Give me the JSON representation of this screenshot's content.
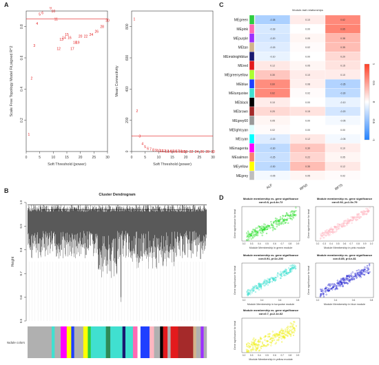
{
  "labels": {
    "a": "A",
    "b": "B",
    "c": "C",
    "d": "D"
  },
  "chart_data": [
    {
      "type": "scatter",
      "id": "scale_free_fit",
      "xlabel": "Soft Threshold (power)",
      "ylabel": "Scale Free Topology Model Fit,signed R^2",
      "xlim": [
        0,
        30
      ],
      "ylim": [
        0,
        0.9
      ],
      "xticks": [
        0,
        5,
        10,
        15,
        20,
        25,
        30
      ],
      "yticks": [
        0.2,
        0.4,
        0.6,
        0.8
      ],
      "hline": 0.85,
      "hline_color": "#e31a1c",
      "x": [
        1,
        2,
        3,
        4,
        5,
        6,
        7,
        8,
        9,
        10,
        11,
        12,
        13,
        14,
        15,
        16,
        17,
        18,
        19,
        20,
        22,
        24,
        26,
        28,
        30
      ],
      "y": [
        0.11,
        0.47,
        0.68,
        0.82,
        0.88,
        0.89,
        0.94,
        0.94,
        0.92,
        0.9,
        0.85,
        0.66,
        0.72,
        0.73,
        0.75,
        0.73,
        0.66,
        0.7,
        0.7,
        0.74,
        0.74,
        0.75,
        0.77,
        0.8,
        0.84
      ]
    },
    {
      "type": "scatter",
      "id": "mean_connectivity",
      "xlabel": "Soft Threshold (power)",
      "ylabel": "Mean Connectivity",
      "xlim": [
        0,
        30
      ],
      "ylim": [
        0,
        900
      ],
      "xticks": [
        0,
        5,
        10,
        15,
        20,
        25,
        30
      ],
      "yticks": [
        0,
        200,
        400,
        600,
        800
      ],
      "hline": 100,
      "hline_color": "#e31a1c",
      "x": [
        1,
        2,
        3,
        4,
        5,
        6,
        7,
        8,
        9,
        10,
        11,
        12,
        13,
        14,
        15,
        16,
        17,
        18,
        19,
        20,
        22,
        24,
        26,
        28,
        30
      ],
      "y": [
        850,
        260,
        100,
        50,
        30,
        20,
        15,
        10,
        8,
        6,
        5,
        4,
        3,
        3,
        2,
        2,
        2,
        2,
        1,
        1,
        1,
        1,
        1,
        1,
        1
      ]
    },
    {
      "type": "heatmap",
      "id": "module_trait",
      "title": "Module-trait relationships",
      "columns": [
        "ALF",
        "RF50",
        "RF75"
      ],
      "colorbar_ticks": [
        "1",
        "0.5",
        "0",
        "-0.5",
        "-1"
      ],
      "rows": [
        {
          "name": "MEgreen",
          "color": "#2ecc40",
          "r": [
            -0.38,
            0.1,
            0.62
          ]
        },
        {
          "name": "MEpink",
          "color": "#ff69b4",
          "r": [
            -0.18,
            0.0,
            0.65
          ]
        },
        {
          "name": "MEpurple",
          "color": "#9b30ff",
          "r": [
            -0.2,
            0.05,
            0.38
          ]
        },
        {
          "name": "MEtan",
          "color": "#d2b48c",
          "r": [
            -0.15,
            0.02,
            0.35
          ]
        },
        {
          "name": "MEmidnightblue",
          "color": "#191970",
          "r": [
            -0.1,
            0.0,
            0.2
          ]
        },
        {
          "name": "MEred",
          "color": "#e31a1c",
          "r": [
            0.12,
            0.05,
            0.15
          ]
        },
        {
          "name": "MEgreenyellow",
          "color": "#adff2f",
          "r": [
            0.3,
            0.1,
            0.1
          ]
        },
        {
          "name": "MEblue",
          "color": "#1f3fff",
          "r": [
            0.6,
            0.08,
            -0.35
          ]
        },
        {
          "name": "MEturquoise",
          "color": "#40e0d0",
          "r": [
            0.62,
            0.02,
            -0.3
          ]
        },
        {
          "name": "MEblack",
          "color": "#000000",
          "r": [
            0.1,
            0.0,
            -0.1
          ]
        },
        {
          "name": "MEbrown",
          "color": "#a52a2a",
          "r": [
            0.2,
            0.15,
            -0.2
          ]
        },
        {
          "name": "MEgrey60",
          "color": "#999999",
          "r": [
            0.05,
            0.0,
            -0.05
          ]
        },
        {
          "name": "MElightcyan",
          "color": "#e0ffff",
          "r": [
            0.02,
            0.0,
            0.0
          ]
        },
        {
          "name": "MEcyan",
          "color": "#00ffff",
          "r": [
            -0.15,
            0.12,
            -0.05
          ]
        },
        {
          "name": "MEmagenta",
          "color": "#ff00ff",
          "r": [
            -0.3,
            0.3,
            0.1
          ]
        },
        {
          "name": "MEsalmon",
          "color": "#fa8072",
          "r": [
            -0.25,
            0.22,
            0.05
          ]
        },
        {
          "name": "MEyellow",
          "color": "#ffff00",
          "r": [
            -0.3,
            0.35,
            0.12
          ]
        },
        {
          "name": "MEgrey",
          "color": "#bebebe",
          "r": [
            -0.05,
            0.05,
            0.02
          ]
        }
      ]
    },
    {
      "type": "dendrogram",
      "id": "cluster_dendrogram",
      "title": "Cluster Dendrogram",
      "ylabel": "Height",
      "yticks": [
        0.5,
        0.6,
        0.7,
        0.8,
        0.9,
        1.0
      ],
      "ylim": [
        0.5,
        1.0
      ],
      "module_colors_label": "Module colors",
      "module_colors": [
        {
          "color": "#b0b0b0",
          "w": 16
        },
        {
          "color": "#40e0d0",
          "w": 2
        },
        {
          "color": "#b0b0b0",
          "w": 4
        },
        {
          "color": "#ff00ff",
          "w": 4
        },
        {
          "color": "#ffff00",
          "w": 3
        },
        {
          "color": "#1f3fff",
          "w": 2
        },
        {
          "color": "#b0b0b0",
          "w": 6
        },
        {
          "color": "#ffff00",
          "w": 3
        },
        {
          "color": "#2ecc40",
          "w": 2
        },
        {
          "color": "#40e0d0",
          "w": 10
        },
        {
          "color": "#2e8b57",
          "w": 3
        },
        {
          "color": "#40e0d0",
          "w": 8
        },
        {
          "color": "#191970",
          "w": 2
        },
        {
          "color": "#40e0d0",
          "w": 5
        },
        {
          "color": "#ff69b4",
          "w": 3
        },
        {
          "color": "#ffffff",
          "w": 2
        },
        {
          "color": "#1f3fff",
          "w": 6
        },
        {
          "color": "#ffb6c1",
          "w": 3
        },
        {
          "color": "#b0b0b0",
          "w": 4
        },
        {
          "color": "#000000",
          "w": 2
        },
        {
          "color": "#e31a1c",
          "w": 3
        },
        {
          "color": "#b0b0b0",
          "w": 2
        },
        {
          "color": "#e31a1c",
          "w": 5
        },
        {
          "color": "#a52a2a",
          "w": 10
        },
        {
          "color": "#d2b48c",
          "w": 2
        },
        {
          "color": "#b0b0b0",
          "w": 3
        },
        {
          "color": "#9b30ff",
          "w": 2
        },
        {
          "color": "#b0b0b0",
          "w": 2
        }
      ]
    },
    {
      "type": "scatter",
      "id": "mm_gs_green",
      "title": "Module membership vs. gene significance",
      "subtitle": "cor=0.8, p=4.4e-72",
      "xlabel": "Module Membership in green module",
      "ylabel": "Gene significance for treat",
      "color": "#22dd22",
      "xticks": [
        "0.2",
        "0.3",
        "0.4",
        "0.5",
        "0.6",
        "0.7",
        "0.8",
        "0.9"
      ]
    },
    {
      "type": "scatter",
      "id": "mm_gs_pink",
      "title": "Module membership vs. gene significance",
      "subtitle": "cor=0.92, p=1.3e-79",
      "xlabel": "Module Membership in pink module",
      "ylabel": "Gene significance for treat",
      "color": "#ffb6c1",
      "xticks": [
        "0.2",
        "0.3",
        "0.4",
        "0.5",
        "0.6",
        "0.7",
        "0.8",
        "0.9",
        "1.0"
      ]
    },
    {
      "type": "scatter",
      "id": "mm_gs_turquoise",
      "title": "Module membership vs. gene significance",
      "subtitle": "cor=0.91, p<1e-200",
      "xlabel": "Module Membership in turquoise module",
      "ylabel": "Gene significance for treat",
      "color": "#40e0d0",
      "xticks": [
        "0.2",
        "0.4",
        "0.6",
        "0.8"
      ]
    },
    {
      "type": "scatter",
      "id": "mm_gs_blue",
      "title": "Module membership vs. gene significance",
      "subtitle": "cor=0.85, p<1e-81",
      "xlabel": "Module Membership in blue module",
      "ylabel": "Gene significance for treat",
      "color": "#1f1fcf",
      "xticks": [
        "0.2",
        "0.4",
        "0.6",
        "0.8"
      ]
    },
    {
      "type": "scatter",
      "id": "mm_gs_yellow",
      "title": "Module membership vs. gene significance",
      "subtitle": "cor=0.7, p=2.1e-62",
      "xlabel": "Module Membership in yellow module",
      "ylabel": "Gene significance for treat",
      "color": "#eeee00",
      "xticks": [
        "0.2",
        "0.3",
        "0.4",
        "0.5",
        "0.6",
        "0.7",
        "0.8",
        "0.9"
      ]
    }
  ]
}
